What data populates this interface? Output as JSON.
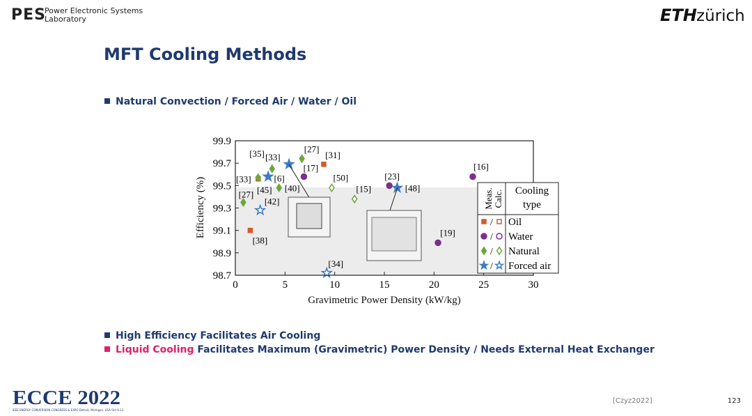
{
  "header": {
    "lab": [
      "Power Electronic Systems",
      "Laboratory"
    ],
    "logo_left": "PES",
    "logo_right": [
      "ETH",
      "zürich"
    ]
  },
  "title": "MFT Cooling Methods",
  "bullets_top": [
    "Natural Convection / Forced Air / Water / Oil"
  ],
  "bullets_bottom": [
    {
      "text": "High Efficiency Facilitates Air Cooling"
    },
    {
      "highlight": "Liquid Cooling",
      "text": " Facilitates Maximum (Gravimetric) Power Density / Needs External Heat Exchanger"
    }
  ],
  "footer": {
    "citation": "[Czyz2022]",
    "page": "123",
    "conference": "ECCE 2022",
    "conference_sub": "IEEE ENERGY CONVERSION CONGRESS & EXPO  Detroit, Michigan, USA  Oct 9-13"
  },
  "chart_data": {
    "type": "scatter",
    "xlabel": "Gravimetric Power Density (kW/kg)",
    "ylabel": "Efficiency (%)",
    "xlim": [
      0,
      30
    ],
    "ylim": [
      98.7,
      99.9
    ],
    "xticks": [
      0,
      5,
      10,
      15,
      20,
      25,
      30
    ],
    "yticks": [
      98.7,
      98.9,
      99.1,
      99.3,
      99.5,
      99.7,
      99.9
    ],
    "legend": {
      "headers": [
        "Meas.",
        "Calc.",
        "Cooling type"
      ],
      "corner": "lower right"
    },
    "series": [
      {
        "name": "Oil",
        "color": "#d45a2a",
        "marker": "square",
        "x": [
          2.3,
          8.9,
          1.5
        ],
        "y": [
          99.56,
          99.69,
          99.1
        ],
        "labels": [
          "[33]",
          "[31]",
          "[38]"
        ],
        "measured": [
          true,
          true,
          true
        ]
      },
      {
        "name": "Water",
        "color": "#7b2f8e",
        "marker": "circle",
        "x": [
          6.9,
          15.5,
          23.9,
          20.4
        ],
        "y": [
          99.58,
          99.5,
          99.58,
          98.99
        ],
        "labels": [
          "[17]",
          "[23]",
          "[16]",
          "[19]"
        ],
        "measured": [
          true,
          true,
          true,
          true
        ]
      },
      {
        "name": "Natural",
        "color": "#6aa83c",
        "marker": "diamond",
        "x": [
          2.3,
          6.7,
          4.4,
          0.8,
          3.7,
          9.7,
          12.0
        ],
        "y": [
          99.57,
          99.74,
          99.48,
          99.35,
          99.65,
          99.48,
          99.38
        ],
        "labels": [
          "[45]",
          "[27]",
          "[40]",
          "[27]",
          "[33]",
          "[50]",
          "[15]"
        ],
        "measured": [
          true,
          true,
          true,
          true,
          true,
          false,
          false
        ]
      },
      {
        "name": "Forced air",
        "color": "#3b7cc4",
        "marker": "star",
        "x": [
          3.3,
          5.4,
          16.3,
          2.5,
          9.2
        ],
        "y": [
          99.58,
          99.69,
          99.48,
          99.28,
          98.72
        ],
        "labels": [
          "[6]",
          "[35]",
          "[48]",
          "[42]",
          "[34]"
        ],
        "measured": [
          true,
          true,
          true,
          false,
          false
        ]
      }
    ]
  }
}
